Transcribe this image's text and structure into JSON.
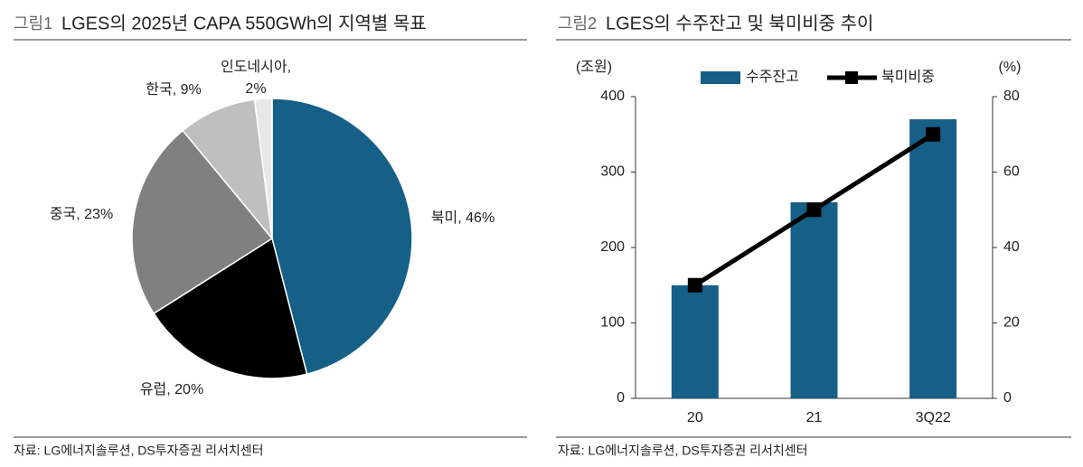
{
  "chart_data": [
    {
      "type": "pie",
      "label": "그림1",
      "title": "LGES의 2025년 CAPA 550GWh의 지역별 목표",
      "values": [
        46,
        20,
        23,
        9,
        2
      ],
      "value_labels": [
        "북미, 46%",
        "유럽, 20%",
        "중국, 23%",
        "한국, 9%",
        "인도네시아,\n2%"
      ],
      "colors": [
        "#165f86",
        "#000000",
        "#808080",
        "#bfbfbf",
        "#e8e8e8"
      ],
      "source": "자료: LG에너지솔루션, DS투자증권 리서치센터"
    },
    {
      "type": "bar-line",
      "label": "그림2",
      "title": "LGES의 수주잔고 및 북미비중 추이",
      "categories": [
        "20",
        "21",
        "3Q22"
      ],
      "series": [
        {
          "name": "수주잔고",
          "color": "#165f86",
          "values": [
            150,
            260,
            370
          ]
        },
        {
          "name": "북미비중",
          "color": "#000000",
          "values": [
            30,
            50,
            70
          ],
          "axis": "y2"
        }
      ],
      "y_label": "(조원)",
      "y2_label": "(%)",
      "ylim": [
        0,
        400
      ],
      "yticks": [
        0,
        100,
        200,
        300,
        400
      ],
      "y2lim": [
        0,
        80
      ],
      "y2ticks": [
        0,
        20,
        40,
        60,
        80
      ],
      "source": "자료: LG에너지솔루션, DS투자증권 리서치센터"
    }
  ]
}
